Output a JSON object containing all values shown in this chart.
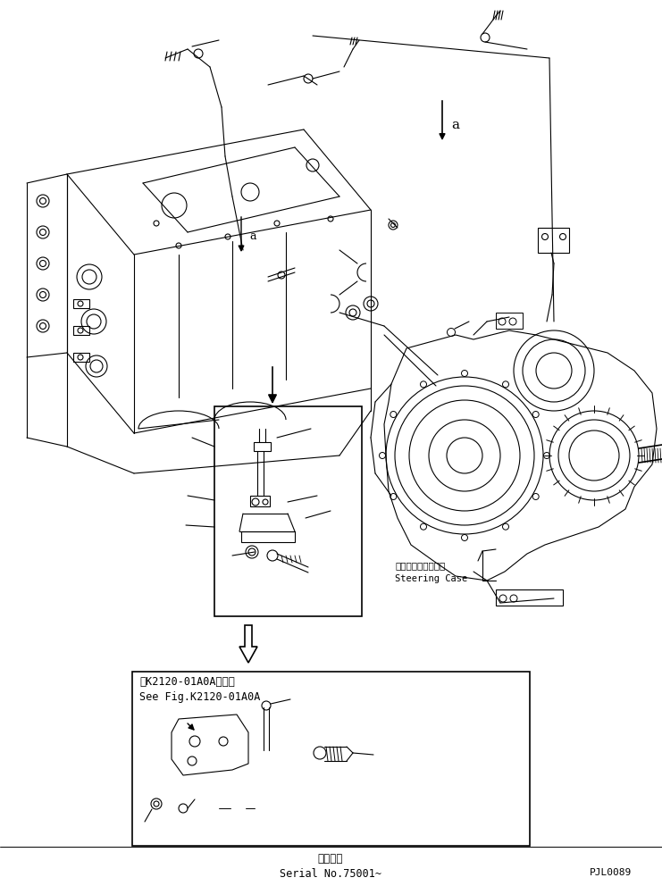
{
  "background_color": "#ffffff",
  "line_color": "#000000",
  "fig_width": 7.41,
  "fig_height": 9.92,
  "dpi": 100,
  "bottom_text_line1": "適用号機",
  "bottom_text_line2": "Serial No.75001~",
  "bottom_right_text": "PJL0089",
  "steering_label_jp": "ステアリングケース",
  "steering_label_en": "Steering Case",
  "ref_label_jp": "第K2120-01A0A図参照",
  "ref_label_en": "See Fig.K2120-01A0A",
  "label_a": "a",
  "text_color": "#000000"
}
